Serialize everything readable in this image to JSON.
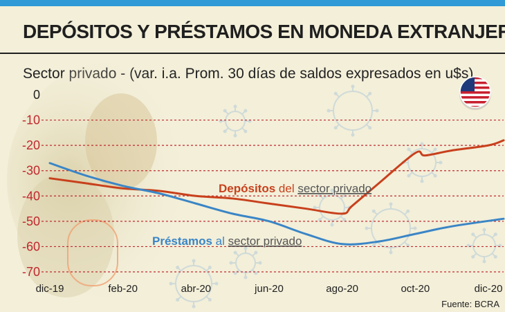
{
  "title": "DEPÓSITOS Y PRÉSTAMOS EN MONEDA EXTRANJERA",
  "subtitle": "Sector privado - (var. i.a. Prom. 30 días de saldos expresados en u$s)",
  "source": "Fuente: BCRA",
  "flag_icon": "us-flag-icon",
  "colors": {
    "depositos": "#c8401c",
    "prestamos": "#3a85c6",
    "grid": "#c1272d",
    "top_bar": "#2f9ad6"
  },
  "labels": {
    "depositos_word": "Depósitos",
    "depositos_connector": " del ",
    "depositos_suffix": "sector privado",
    "prestamos_word": "Préstamos",
    "prestamos_connector": " al ",
    "prestamos_suffix": "sector privado"
  },
  "chart_data": {
    "type": "line",
    "title": "DEPÓSITOS Y PRÉSTAMOS EN MONEDA EXTRANJERA",
    "subtitle": "Sector privado - (var. i.a. Prom. 30 días de saldos expresados en u$s)",
    "ylim": [
      -70,
      0
    ],
    "yticks": [
      0,
      -10,
      -20,
      -30,
      -40,
      -50,
      -60,
      -70
    ],
    "ytick_labels": [
      "0",
      "-10",
      "-20",
      "-30",
      "-40",
      "-50",
      "-60",
      "-70"
    ],
    "x_range": [
      "2019-12",
      "2020-12"
    ],
    "xtick_labels": [
      "dic-19",
      "feb-20",
      "abr-20",
      "jun-20",
      "ago-20",
      "oct-20",
      "dic-20"
    ],
    "xticks": [
      "2019-12",
      "2020-02",
      "2020-04",
      "2020-06",
      "2020-08",
      "2020-10",
      "2020-12"
    ],
    "grid": "horizontal dashed",
    "series": [
      {
        "name": "Depósitos del sector privado",
        "x": [
          "2019-12",
          "2020-01",
          "2020-02",
          "2020-03",
          "2020-04",
          "2020-05",
          "2020-06",
          "2020-07",
          "2020-08",
          "2020-08",
          "2020-09",
          "2020-10",
          "2020-10",
          "2020-11",
          "2020-12",
          "2020-12"
        ],
        "values": [
          -33,
          -35,
          -37,
          -38,
          -40,
          -41,
          -43,
          -45,
          -47,
          -44,
          -35,
          -23,
          -24,
          -22,
          -20,
          -18
        ]
      },
      {
        "name": "Préstamos al sector privado",
        "x": [
          "2019-12",
          "2020-01",
          "2020-02",
          "2020-03",
          "2020-04",
          "2020-05",
          "2020-06",
          "2020-07",
          "2020-08",
          "2020-09",
          "2020-10",
          "2020-11",
          "2020-12"
        ],
        "values": [
          -27,
          -32,
          -36,
          -39,
          -43,
          -47,
          -50,
          -55,
          -59,
          -58,
          -55,
          -52,
          -49
        ]
      }
    ]
  }
}
